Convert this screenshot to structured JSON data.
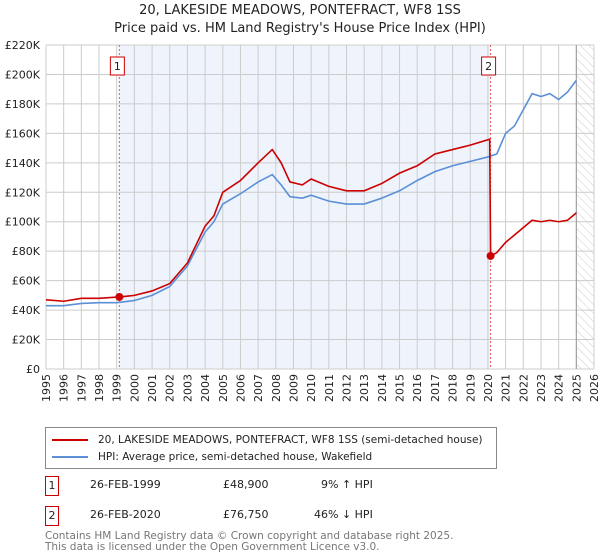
{
  "chart_data": {
    "type": "line",
    "title": "20, LAKESIDE MEADOWS, PONTEFRACT, WF8 1SS",
    "subtitle": "Price paid vs. HM Land Registry's House Price Index (HPI)",
    "xlim": [
      1995,
      2026
    ],
    "ylim": [
      0,
      220000
    ],
    "x_ticks": [
      "1995",
      "1996",
      "1997",
      "1998",
      "1999",
      "2000",
      "2001",
      "2002",
      "2003",
      "2004",
      "2005",
      "2006",
      "2007",
      "2008",
      "2009",
      "2010",
      "2011",
      "2012",
      "2013",
      "2014",
      "2015",
      "2016",
      "2017",
      "2018",
      "2019",
      "2020",
      "2021",
      "2022",
      "2023",
      "2024",
      "2025",
      "2026"
    ],
    "y_ticks": [
      {
        "v": 0,
        "label": "£0"
      },
      {
        "v": 20000,
        "label": "£20K"
      },
      {
        "v": 40000,
        "label": "£40K"
      },
      {
        "v": 60000,
        "label": "£60K"
      },
      {
        "v": 80000,
        "label": "£80K"
      },
      {
        "v": 100000,
        "label": "£100K"
      },
      {
        "v": 120000,
        "label": "£120K"
      },
      {
        "v": 140000,
        "label": "£140K"
      },
      {
        "v": 160000,
        "label": "£160K"
      },
      {
        "v": 180000,
        "label": "£180K"
      },
      {
        "v": 200000,
        "label": "£200K"
      },
      {
        "v": 220000,
        "label": "£220K"
      }
    ],
    "grid": true,
    "shaded_range": [
      1999.15,
      2020.15
    ],
    "forecast_hatch_from": 2025.0,
    "series": [
      {
        "name": "20, LAKESIDE MEADOWS, PONTEFRACT, WF8 1SS (semi-detached house)",
        "color": "#cc0000",
        "x": [
          1995,
          1996,
          1997,
          1998,
          1999.15,
          2000,
          2001,
          2002,
          2003,
          2004,
          2004.5,
          2005,
          2006,
          2007,
          2007.8,
          2008.3,
          2008.8,
          2009.5,
          2010,
          2011,
          2012,
          2013,
          2014,
          2015,
          2016,
          2017,
          2018,
          2019,
          2020.1,
          2020.15,
          2020.5,
          2021,
          2021.5,
          2022,
          2022.5,
          2023,
          2023.5,
          2024,
          2024.5,
          2025
        ],
        "y": [
          47000,
          46000,
          48000,
          48000,
          48900,
          50000,
          53000,
          58000,
          72000,
          97000,
          104000,
          120000,
          128000,
          140000,
          149000,
          140000,
          127000,
          125000,
          129000,
          124000,
          121000,
          121000,
          126000,
          133000,
          138000,
          146000,
          149000,
          152000,
          156000,
          76750,
          79000,
          86000,
          91000,
          96000,
          101000,
          100000,
          101000,
          100000,
          101000,
          106000
        ]
      },
      {
        "name": "HPI: Average price, semi-detached house, Wakefield",
        "color": "#5b8fd6",
        "x": [
          1995,
          1996,
          1997,
          1998,
          1999,
          2000,
          2001,
          2002,
          2003,
          2004,
          2004.5,
          2005,
          2006,
          2007,
          2007.8,
          2008.3,
          2008.8,
          2009.5,
          2010,
          2011,
          2012,
          2013,
          2014,
          2015,
          2016,
          2017,
          2018,
          2019,
          2020,
          2020.5,
          2021,
          2021.5,
          2022,
          2022.5,
          2023,
          2023.5,
          2024,
          2024.5,
          2025
        ],
        "y": [
          43000,
          43000,
          44500,
          45000,
          45000,
          46500,
          50000,
          56000,
          70000,
          93000,
          100000,
          112000,
          119000,
          127000,
          132000,
          125000,
          117000,
          116000,
          118000,
          114000,
          112000,
          112000,
          116000,
          121000,
          128000,
          134000,
          138000,
          141000,
          144000,
          146000,
          160000,
          165000,
          176000,
          187000,
          185000,
          187000,
          183000,
          188000,
          196000
        ]
      }
    ],
    "markers": [
      {
        "id": "1",
        "x": 1999.15,
        "y": 48900
      },
      {
        "id": "2",
        "x": 2020.15,
        "y": 76750
      }
    ]
  },
  "legend": {
    "items": [
      "20, LAKESIDE MEADOWS, PONTEFRACT, WF8 1SS (semi-detached house)",
      "HPI: Average price, semi-detached house, Wakefield"
    ]
  },
  "transactions": [
    {
      "id": "1",
      "date": "26-FEB-1999",
      "price": "£48,900",
      "hpi": "9% ↑ HPI"
    },
    {
      "id": "2",
      "date": "26-FEB-2020",
      "price": "£76,750",
      "hpi": "46% ↓ HPI"
    }
  ],
  "footer": {
    "line1": "Contains HM Land Registry data © Crown copyright and database right 2025.",
    "line2": "This data is licensed under the Open Government Licence v3.0."
  }
}
